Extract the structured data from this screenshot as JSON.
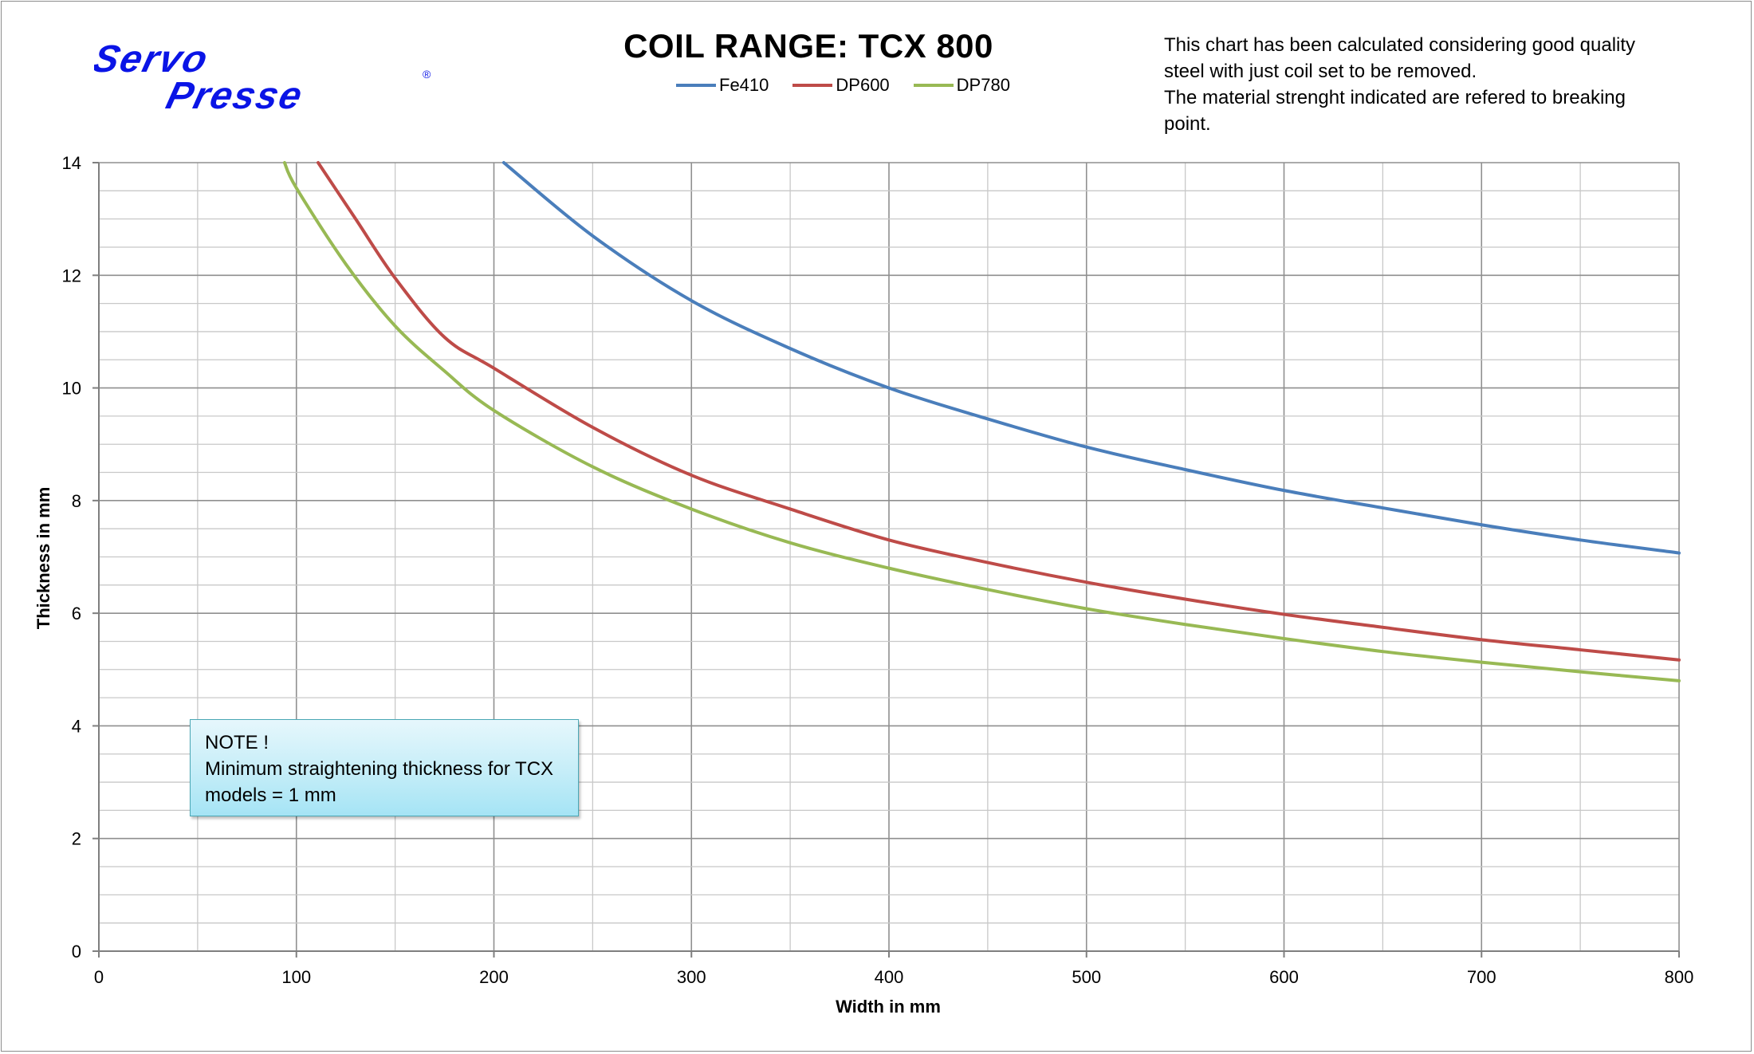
{
  "brand": {
    "logo_line1": "Servo",
    "logo_line2": "Presse",
    "logo_mark": "®",
    "logo_color": "#0a14e6"
  },
  "info_note": {
    "lines": [
      "This chart has been calculated considering good quality",
      "steel with just coil set to be removed.",
      "The material strenght indicated are refered to breaking",
      "point."
    ]
  },
  "min_note": {
    "lines": [
      "NOTE !",
      "Minimum straightening thickness for TCX",
      "models = 1 mm"
    ]
  },
  "chart_data": {
    "type": "line",
    "title": "COIL RANGE: TCX 800",
    "xlabel": "Width in mm",
    "ylabel": "Thickness in mm",
    "xlim": [
      0,
      800
    ],
    "ylim": [
      0,
      14
    ],
    "x_ticks": [
      0,
      100,
      200,
      300,
      400,
      500,
      600,
      700,
      800
    ],
    "y_ticks": [
      0,
      2,
      4,
      6,
      8,
      10,
      12,
      14
    ],
    "grid": true,
    "legend_position": "top-center",
    "series": [
      {
        "name": "Fe410",
        "color": "#4a7ebb",
        "x": [
          205,
          250,
          300,
          350,
          400,
          450,
          500,
          550,
          600,
          650,
          700,
          750,
          800
        ],
        "y": [
          14.0,
          12.7,
          11.55,
          10.7,
          10.0,
          9.45,
          8.95,
          8.55,
          8.18,
          7.87,
          7.57,
          7.3,
          7.07
        ]
      },
      {
        "name": "DP600",
        "color": "#be4b48",
        "x": [
          111,
          130,
          150,
          175,
          200,
          250,
          300,
          350,
          400,
          450,
          500,
          550,
          600,
          650,
          700,
          750,
          800
        ],
        "y": [
          14.0,
          13.0,
          11.95,
          10.9,
          10.35,
          9.3,
          8.45,
          7.85,
          7.3,
          6.9,
          6.55,
          6.25,
          5.98,
          5.75,
          5.53,
          5.35,
          5.17
        ]
      },
      {
        "name": "DP780",
        "color": "#98b954",
        "x": [
          94,
          100,
          125,
          150,
          175,
          200,
          250,
          300,
          350,
          400,
          450,
          500,
          550,
          600,
          650,
          700,
          750,
          800
        ],
        "y": [
          14.0,
          13.55,
          12.2,
          11.1,
          10.3,
          9.6,
          8.6,
          7.85,
          7.25,
          6.8,
          6.42,
          6.08,
          5.8,
          5.55,
          5.32,
          5.13,
          4.96,
          4.8
        ]
      }
    ]
  }
}
